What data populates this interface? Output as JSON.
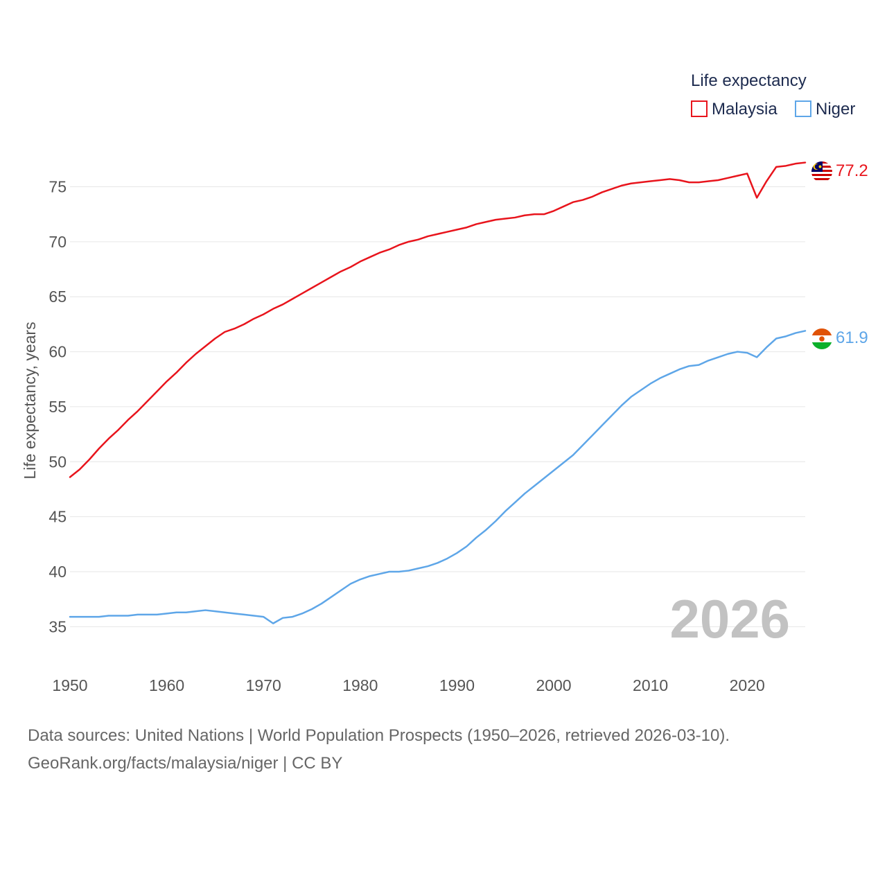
{
  "chart_data": {
    "type": "line",
    "xlabel": "",
    "ylabel": "Life expectancy, years",
    "xlim": [
      1950,
      2026
    ],
    "ylim": [
      32,
      79
    ],
    "yticks": [
      35,
      40,
      45,
      50,
      55,
      60,
      65,
      70,
      75
    ],
    "xticks": [
      1950,
      1960,
      1970,
      1980,
      1990,
      2000,
      2010,
      2020
    ],
    "grid": true,
    "legend_title": "Life expectancy",
    "legend_position": "top-right",
    "current_year": "2026",
    "x": [
      1950,
      1951,
      1952,
      1953,
      1954,
      1955,
      1956,
      1957,
      1958,
      1959,
      1960,
      1961,
      1962,
      1963,
      1964,
      1965,
      1966,
      1967,
      1968,
      1969,
      1970,
      1971,
      1972,
      1973,
      1974,
      1975,
      1976,
      1977,
      1978,
      1979,
      1980,
      1981,
      1982,
      1983,
      1984,
      1985,
      1986,
      1987,
      1988,
      1989,
      1990,
      1991,
      1992,
      1993,
      1994,
      1995,
      1996,
      1997,
      1998,
      1999,
      2000,
      2001,
      2002,
      2003,
      2004,
      2005,
      2006,
      2007,
      2008,
      2009,
      2010,
      2011,
      2012,
      2013,
      2014,
      2015,
      2016,
      2017,
      2018,
      2019,
      2020,
      2021,
      2022,
      2023,
      2024,
      2025,
      2026
    ],
    "series": [
      {
        "name": "Malaysia",
        "color": "#e8141c",
        "end_label": "77.2",
        "flag": "malaysia-flag",
        "values": [
          48.6,
          49.3,
          50.2,
          51.2,
          52.1,
          52.9,
          53.8,
          54.6,
          55.5,
          56.4,
          57.3,
          58.1,
          59.0,
          59.8,
          60.5,
          61.2,
          61.8,
          62.1,
          62.5,
          63.0,
          63.4,
          63.9,
          64.3,
          64.8,
          65.3,
          65.8,
          66.3,
          66.8,
          67.3,
          67.7,
          68.2,
          68.6,
          69.0,
          69.3,
          69.7,
          70.0,
          70.2,
          70.5,
          70.7,
          70.9,
          71.1,
          71.3,
          71.6,
          71.8,
          72.0,
          72.1,
          72.2,
          72.4,
          72.5,
          72.5,
          72.8,
          73.2,
          73.6,
          73.8,
          74.1,
          74.5,
          74.8,
          75.1,
          75.3,
          75.4,
          75.5,
          75.6,
          75.7,
          75.6,
          75.4,
          75.4,
          75.5,
          75.6,
          75.8,
          76.0,
          76.2,
          74.0,
          75.5,
          76.8,
          76.9,
          77.1,
          77.2
        ]
      },
      {
        "name": "Niger",
        "color": "#5ea6e8",
        "end_label": "61.9",
        "flag": "niger-flag",
        "values": [
          35.9,
          35.9,
          35.9,
          35.9,
          36.0,
          36.0,
          36.0,
          36.1,
          36.1,
          36.1,
          36.2,
          36.3,
          36.3,
          36.4,
          36.5,
          36.4,
          36.3,
          36.2,
          36.1,
          36.0,
          35.9,
          35.3,
          35.8,
          35.9,
          36.2,
          36.6,
          37.1,
          37.7,
          38.3,
          38.9,
          39.3,
          39.6,
          39.8,
          40.0,
          40.0,
          40.1,
          40.3,
          40.5,
          40.8,
          41.2,
          41.7,
          42.3,
          43.1,
          43.8,
          44.6,
          45.5,
          46.3,
          47.1,
          47.8,
          48.5,
          49.2,
          49.9,
          50.6,
          51.5,
          52.4,
          53.3,
          54.2,
          55.1,
          55.9,
          56.5,
          57.1,
          57.6,
          58.0,
          58.4,
          58.7,
          58.8,
          59.2,
          59.5,
          59.8,
          60.0,
          59.9,
          59.5,
          60.4,
          61.2,
          61.4,
          61.7,
          61.9
        ]
      }
    ]
  },
  "footer": {
    "line1": "Data sources: United Nations | World Population Prospects (1950–2026, retrieved 2026-03-10).",
    "line2": "GeoRank.org/facts/malaysia/niger | CC BY"
  },
  "colors": {
    "malaysia": "#e8141c",
    "niger": "#5ea6e8",
    "legend_text": "#1d2b4f",
    "watermark": "#c2c2c2"
  }
}
